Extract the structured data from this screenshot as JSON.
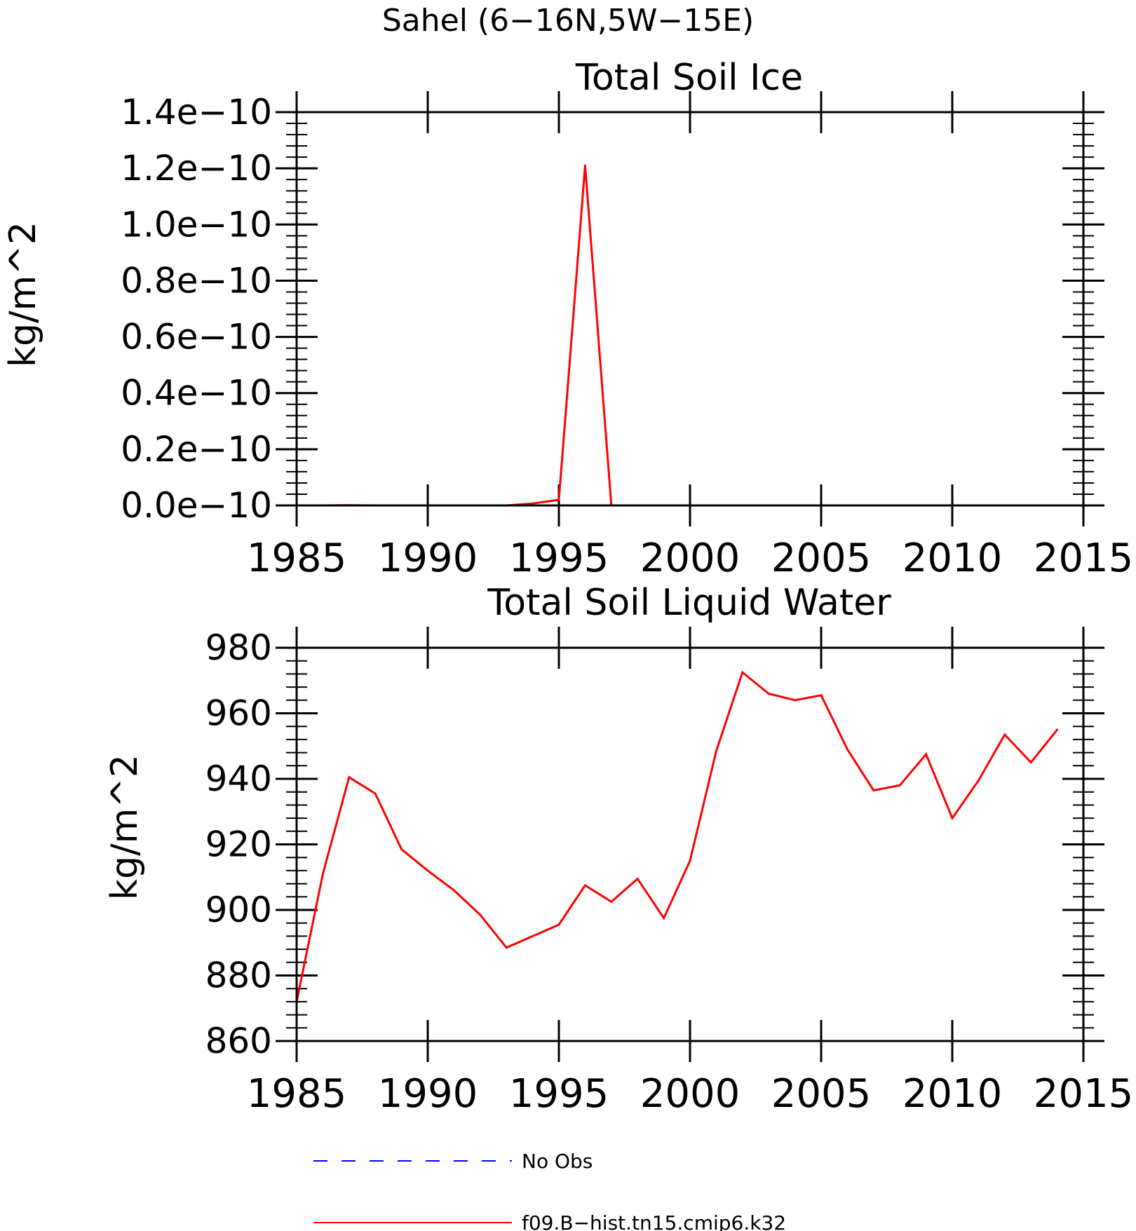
{
  "figure": {
    "suptitle": "Sahel (6−16N,5W−15E)"
  },
  "chart_data": [
    {
      "type": "line",
      "title": "Total Soil Ice",
      "xlabel": "",
      "ylabel": "kg/m^2",
      "xlim": [
        1985,
        2015
      ],
      "ylim": [
        0,
        1.4e-10
      ],
      "xticks": [
        1985,
        1990,
        1995,
        2000,
        2005,
        2010,
        2015
      ],
      "xtick_labels": [
        "1985",
        "1990",
        "1995",
        "2000",
        "2005",
        "2010",
        "2015"
      ],
      "yticks": [
        0,
        2e-11,
        4e-11,
        6e-11,
        8e-11,
        1e-10,
        1.2e-10,
        1.4e-10
      ],
      "ytick_labels": [
        "0.0e−10",
        "0.2e−10",
        "0.4e−10",
        "0.6e−10",
        "0.8e−10",
        "1.0e−10",
        "1.2e−10",
        "1.4e−10"
      ],
      "grid": false,
      "series": [
        {
          "name": "f09.B−hist.tn15.cmip6.k32",
          "color": "#ff0000",
          "x": [
            1985,
            1986,
            1987,
            1988,
            1989,
            1990,
            1991,
            1992,
            1993,
            1994,
            1995,
            1996,
            1997,
            1998,
            1999,
            2000,
            2001,
            2002,
            2003,
            2004,
            2005,
            2006,
            2007,
            2008,
            2009,
            2010,
            2011,
            2012,
            2013,
            2014
          ],
          "y": [
            0,
            0,
            1e-13,
            0,
            0,
            0,
            0,
            0,
            0,
            7e-13,
            2e-12,
            1.21e-10,
            0,
            0,
            0,
            0,
            0,
            0,
            0,
            0,
            0,
            0,
            0,
            0,
            0,
            0,
            0,
            0,
            0,
            0
          ]
        }
      ]
    },
    {
      "type": "line",
      "title": "Total Soil Liquid Water",
      "xlabel": "",
      "ylabel": "kg/m^2",
      "xlim": [
        1985,
        2015
      ],
      "ylim": [
        860,
        980
      ],
      "xticks": [
        1985,
        1990,
        1995,
        2000,
        2005,
        2010,
        2015
      ],
      "xtick_labels": [
        "1985",
        "1990",
        "1995",
        "2000",
        "2005",
        "2010",
        "2015"
      ],
      "yticks": [
        860,
        880,
        900,
        920,
        940,
        960,
        980
      ],
      "ytick_labels": [
        "860",
        "880",
        "900",
        "920",
        "940",
        "960",
        "980"
      ],
      "grid": false,
      "series": [
        {
          "name": "f09.B−hist.tn15.cmip6.k32",
          "color": "#ff0000",
          "x": [
            1985,
            1986,
            1987,
            1988,
            1989,
            1990,
            1991,
            1992,
            1993,
            1994,
            1995,
            1996,
            1997,
            1998,
            1999,
            2000,
            2001,
            2002,
            2003,
            2004,
            2005,
            2006,
            2007,
            2008,
            2009,
            2010,
            2011,
            2012,
            2013,
            2014
          ],
          "y": [
            872,
            911,
            940.5,
            935.5,
            918.5,
            912,
            906,
            898.5,
            888.5,
            892,
            895.5,
            907.5,
            902.5,
            909.5,
            897.5,
            915,
            948.5,
            972.5,
            966,
            964,
            965.5,
            949,
            936.5,
            938,
            947.5,
            928,
            939.5,
            953.5,
            945,
            955
          ]
        }
      ]
    }
  ],
  "legend": {
    "placement": "bottom",
    "entries": [
      {
        "label": "No Obs",
        "color": "#0000ff",
        "style": "dashed"
      },
      {
        "label": "f09.B−hist.tn15.cmip6.k32",
        "color": "#ff0000",
        "style": "solid"
      }
    ]
  }
}
